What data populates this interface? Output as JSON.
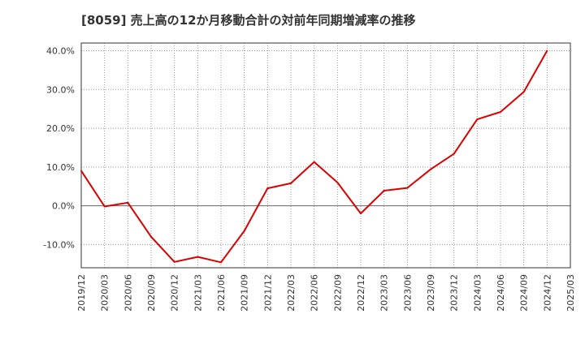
{
  "chart_data": {
    "type": "line",
    "title": "[8059]  売上高の12か月移動合計の対前年同期増減率の推移",
    "xlabel": "",
    "ylabel": "",
    "ylim": [
      -16,
      42
    ],
    "yticks": [
      40,
      30,
      20,
      10,
      0,
      -10
    ],
    "ytick_labels": [
      "40.0%",
      "30.0%",
      "20.0%",
      "10.0%",
      "0.0%",
      "-10.0%"
    ],
    "categories": [
      "2019/12",
      "2020/03",
      "2020/06",
      "2020/09",
      "2020/12",
      "2021/03",
      "2021/06",
      "2021/09",
      "2021/12",
      "2022/03",
      "2022/06",
      "2022/09",
      "2022/12",
      "2023/03",
      "2023/06",
      "2023/09",
      "2023/12",
      "2024/03",
      "2024/06",
      "2024/09",
      "2024/12",
      "2025/03"
    ],
    "series": [
      {
        "name": "対前年同期増減率",
        "color": "#dd0000",
        "values": [
          9.0,
          -0.2,
          0.8,
          -8.0,
          -14.5,
          -13.2,
          -14.6,
          -6.5,
          4.5,
          5.8,
          11.3,
          6.0,
          -2.0,
          3.9,
          4.6,
          9.4,
          13.4,
          22.3,
          24.2,
          29.4,
          40.0,
          null
        ]
      }
    ],
    "grid": true,
    "legend": "none"
  }
}
